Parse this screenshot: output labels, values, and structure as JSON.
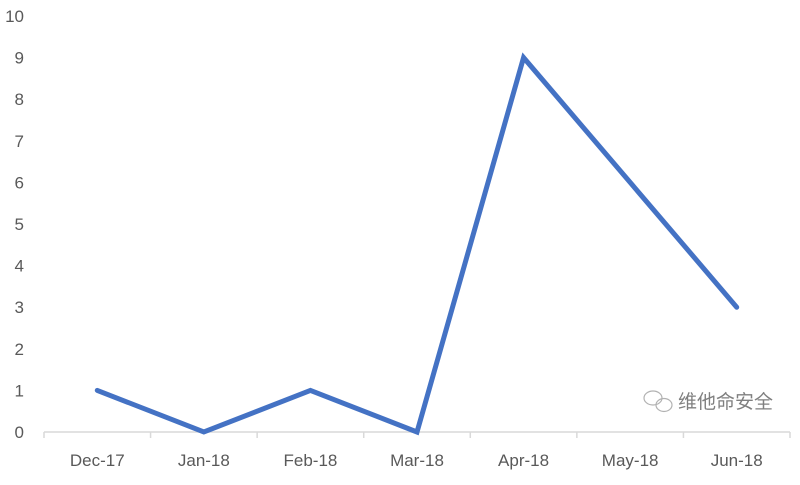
{
  "chart_data": {
    "type": "line",
    "categories": [
      "Dec-17",
      "Jan-18",
      "Feb-18",
      "Mar-18",
      "Apr-18",
      "May-18",
      "Jun-18"
    ],
    "series": [
      {
        "values": [
          1,
          0,
          1,
          0,
          9,
          6,
          3
        ],
        "color": "#4472c4"
      }
    ],
    "ylim": [
      0,
      10
    ],
    "yticks": [
      0,
      1,
      2,
      3,
      4,
      5,
      6,
      7,
      8,
      9,
      10
    ],
    "grid": false,
    "title": "",
    "xlabel": "",
    "ylabel": ""
  },
  "watermark": {
    "text": "维他命安全"
  }
}
